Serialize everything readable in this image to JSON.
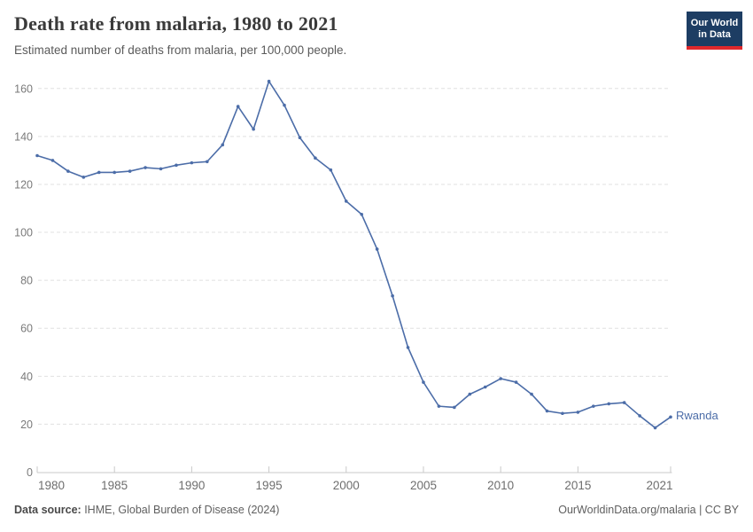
{
  "header": {
    "title": "Death rate from malaria, 1980 to 2021",
    "subtitle": "Estimated number of deaths from malaria, per 100,000 people.",
    "logo": {
      "line1": "Our World",
      "line2": "in Data",
      "bg_color": "#1d3d63",
      "accent_color": "#e0282c"
    }
  },
  "chart_data": {
    "type": "line",
    "title": "Death rate from malaria, 1980 to 2021",
    "subtitle": "Estimated number of deaths from malaria, per 100,000 people.",
    "xlabel": "",
    "ylabel": "",
    "xlim": [
      1980,
      2021
    ],
    "ylim": [
      0,
      160
    ],
    "grid": "horizontal-dashed",
    "legend_position": "end-of-line-label",
    "line_color": "#4c6da8",
    "entity_label": "Rwanda",
    "xticks": [
      1980,
      1985,
      1990,
      1995,
      2000,
      2005,
      2010,
      2015,
      2021
    ],
    "yticks": [
      0,
      20,
      40,
      60,
      80,
      100,
      120,
      140,
      160
    ],
    "x": [
      1980,
      1981,
      1982,
      1983,
      1984,
      1985,
      1986,
      1987,
      1988,
      1989,
      1990,
      1991,
      1992,
      1993,
      1994,
      1995,
      1996,
      1997,
      1998,
      1999,
      2000,
      2001,
      2002,
      2003,
      2004,
      2005,
      2006,
      2007,
      2008,
      2009,
      2010,
      2011,
      2012,
      2013,
      2014,
      2015,
      2016,
      2017,
      2018,
      2019,
      2020,
      2021
    ],
    "series": [
      {
        "name": "Rwanda",
        "values": [
          132,
          130,
          125.5,
          123,
          125,
          125,
          125.5,
          127,
          126.5,
          128,
          129,
          129.5,
          136.5,
          152.5,
          143,
          163,
          153,
          139.5,
          131,
          126,
          113,
          107.5,
          93,
          73.5,
          52,
          37.5,
          27.5,
          27,
          32.5,
          35.5,
          39,
          37.5,
          32.5,
          25.5,
          24.5,
          25,
          27.5,
          28.5,
          29,
          23.5,
          18.5,
          23
        ]
      }
    ]
  },
  "footer": {
    "source_label": "Data source:",
    "source_text": " IHME, Global Burden of Disease (2024)",
    "credit": "OurWorldinData.org/malaria | CC BY"
  }
}
